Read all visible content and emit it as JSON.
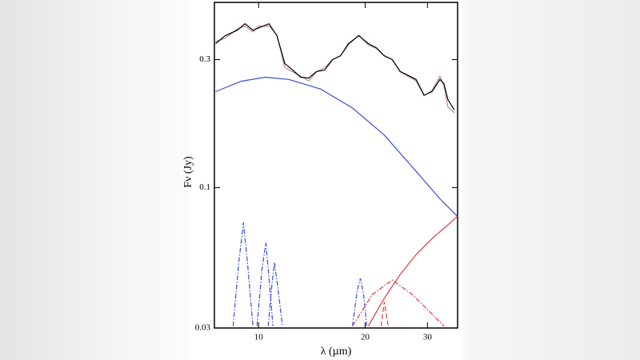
{
  "chart_data": {
    "type": "line",
    "x_label": "λ (µm)",
    "y_label": "Fν (Jy)",
    "xscale": "log",
    "yscale": "log",
    "xlim": [
      7.5,
      36.5
    ],
    "ylim": [
      0.03,
      0.49
    ],
    "xticks": [
      10,
      20,
      30
    ],
    "yticks": [
      0.03,
      0.1,
      0.3
    ],
    "series": [
      {
        "color": "#c08a8a",
        "style": "solid",
        "x": [
          7.56,
          8.04,
          8.7,
          9.16,
          9.64,
          10,
          10.7,
          11.27,
          11.86,
          12.49,
          13.15,
          13.86,
          14.59,
          15.36,
          16.18,
          17.04,
          17.94,
          19.19,
          20.42,
          21.51,
          22.65,
          23.85,
          25.12,
          26.45,
          27.86,
          29.34,
          30.9,
          32.54,
          33.39,
          34.26,
          35.71
        ],
        "values": [
          0.35,
          0.36,
          0.39,
          0.4,
          0.38,
          0.4,
          0.4,
          0.37,
          0.28,
          0.27,
          0.26,
          0.25,
          0.27,
          0.28,
          0.3,
          0.31,
          0.34,
          0.37,
          0.34,
          0.33,
          0.31,
          0.3,
          0.27,
          0.26,
          0.25,
          0.22,
          0.23,
          0.26,
          0.24,
          0.2,
          0.19
        ]
      },
      {
        "color": "#000000",
        "style": "solid",
        "x": [
          7.56,
          8.04,
          8.7,
          9.16,
          9.64,
          10,
          10.7,
          11.27,
          11.86,
          12.49,
          13.15,
          13.86,
          14.59,
          15.36,
          16.18,
          17.04,
          17.94,
          19.19,
          20.42,
          21.51,
          22.65,
          23.85,
          25.12,
          26.45,
          27.86,
          29.34,
          30.9,
          32.54,
          33.39,
          34.26,
          35.71
        ],
        "values": [
          0.344,
          0.368,
          0.386,
          0.408,
          0.386,
          0.394,
          0.408,
          0.368,
          0.29,
          0.274,
          0.258,
          0.256,
          0.271,
          0.274,
          0.3,
          0.31,
          0.344,
          0.368,
          0.344,
          0.332,
          0.31,
          0.3,
          0.271,
          0.262,
          0.253,
          0.221,
          0.228,
          0.253,
          0.244,
          0.213,
          0.195
        ]
      },
      {
        "color": "#3a4fd0",
        "style": "solid",
        "x": [
          7.56,
          8.92,
          10.42,
          12.17,
          14.97,
          18.42,
          22.65,
          27.86,
          32.54,
          36.46
        ],
        "values": [
          0.228,
          0.249,
          0.258,
          0.253,
          0.233,
          0.198,
          0.157,
          0.115,
          0.0909,
          0.0782
        ]
      },
      {
        "color": "#e03a3a",
        "style": "solid",
        "x": [
          20.42,
          22.65,
          25.12,
          27.86,
          30.9,
          34.26,
          36.46
        ],
        "values": [
          0.0305,
          0.0387,
          0.0475,
          0.0563,
          0.0646,
          0.0726,
          0.0782
        ]
      },
      {
        "color": "#3a4fd0",
        "style": "dashdot",
        "x": [
          8.47,
          8.79,
          9.06,
          9.3,
          9.64,
          null,
          9.9,
          10.21,
          10.48,
          10.75,
          10.97,
          null,
          10.64,
          10.92,
          11.09,
          11.32,
          11.68,
          null,
          18.42,
          18.99,
          19.39,
          19.8,
          20.21
        ],
        "values": [
          0.0305,
          0.0527,
          0.0741,
          0.0527,
          0.0305,
          null,
          0.0305,
          0.0492,
          0.0624,
          0.0429,
          0.0305,
          null,
          0.0305,
          0.0444,
          0.0527,
          0.0429,
          0.0305,
          null,
          0.0305,
          0.0414,
          0.0459,
          0.04,
          0.0305
        ]
      },
      {
        "color": "#e03a3a",
        "style": "dashdot",
        "x": [
          18.42,
          20.96,
          23.85,
          27.15,
          30.9,
          33.39
        ],
        "values": [
          0.0305,
          0.04,
          0.0453,
          0.04,
          0.0338,
          0.0305
        ]
      },
      {
        "color": "#e03a3a",
        "style": "dashed",
        "x": [
          22.19,
          22.65,
          23.24
        ],
        "values": [
          0.0305,
          0.0375,
          0.0305
        ]
      }
    ]
  }
}
